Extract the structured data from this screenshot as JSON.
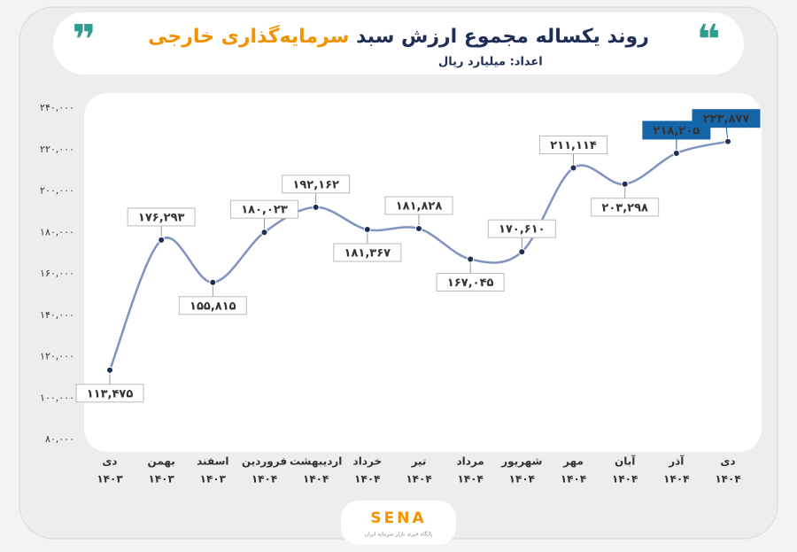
{
  "chart_data": {
    "type": "line",
    "title": "روند یکساله مجموع ارزش سبد",
    "title_highlight": "سرمایه‌گذاری خارجی",
    "subtitle": "اعداد: میلیارد ریال",
    "logo": "SENA",
    "logo_tagline": "پایگاه خبری بازار سرمایه ایران",
    "categories": [
      "دی",
      "بهمن",
      "اسفند",
      "فروردین",
      "اردیبهشت",
      "خرداد",
      "تیر",
      "مرداد",
      "شهریور",
      "مهر",
      "آبان",
      "آذر",
      "دی"
    ],
    "category_years": [
      "۱۴۰۳",
      "۱۴۰۳",
      "۱۴۰۳",
      "۱۴۰۴",
      "۱۴۰۴",
      "۱۴۰۴",
      "۱۴۰۴",
      "۱۴۰۴",
      "۱۴۰۴",
      "۱۴۰۴",
      "۱۴۰۴",
      "۱۴۰۴",
      "۱۴۰۴"
    ],
    "series": [
      {
        "name": "مجموع ارزش سبد",
        "color": "#7f92c2",
        "values": [
          113475,
          176293,
          155815,
          180023,
          192162,
          181367,
          181828,
          167045,
          170610,
          211114,
          203298,
          218205,
          223877
        ],
        "value_labels": [
          "۱۱۳,۴۷۵",
          "۱۷۶,۲۹۳",
          "۱۵۵,۸۱۵",
          "۱۸۰,۰۲۳",
          "۱۹۲,۱۶۲",
          "۱۸۱,۳۶۷",
          "۱۸۱,۸۲۸",
          "۱۶۷,۰۴۵",
          "۱۷۰,۶۱۰",
          "۲۱۱,۱۱۴",
          "۲۰۳,۲۹۸",
          "۲۱۸,۲۰۵",
          "۲۲۳,۸۷۷"
        ]
      }
    ],
    "highlight_color": "#1565a8",
    "ylim": [
      80000,
      240000
    ],
    "yticks": [
      {
        "value": 80000,
        "label": "۸۰,۰۰۰"
      },
      {
        "value": 100000,
        "label": "۱۰۰,۰۰۰"
      },
      {
        "value": 120000,
        "label": "۱۲۰,۰۰۰"
      },
      {
        "value": 140000,
        "label": "۱۴۰,۰۰۰"
      },
      {
        "value": 160000,
        "label": "۱۶۰,۰۰۰"
      },
      {
        "value": 180000,
        "label": "۱۸۰,۰۰۰"
      },
      {
        "value": 200000,
        "label": "۲۰۰,۰۰۰"
      },
      {
        "value": 220000,
        "label": "۲۲۰,۰۰۰"
      },
      {
        "value": 240000,
        "label": "۲۴۰,۰۰۰"
      }
    ],
    "grid": false
  }
}
